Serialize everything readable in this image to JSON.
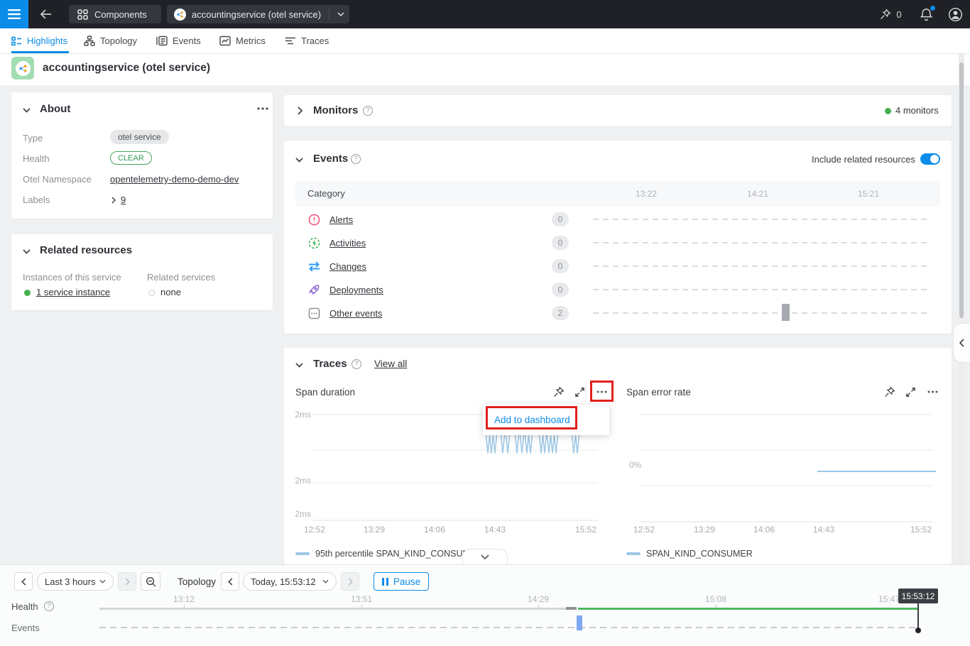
{
  "topbar": {
    "components_label": "Components",
    "service_label": "accountingservice (otel service)",
    "pin_count": "0"
  },
  "nav": {
    "tabs": [
      "Highlights",
      "Topology",
      "Events",
      "Metrics",
      "Traces"
    ]
  },
  "page": {
    "title": "accountingservice (otel service)"
  },
  "about": {
    "title": "About",
    "type_label": "Type",
    "type_value": "otel service",
    "health_label": "Health",
    "health_value": "CLEAR",
    "ns_label": "Otel Namespace",
    "ns_value": "opentelemetry-demo-demo-dev",
    "labels_label": "Labels",
    "labels_value": "9"
  },
  "related": {
    "title": "Related resources",
    "instances_label": "Instances of this service",
    "instances_value": "1 service instance",
    "services_label": "Related services",
    "services_value": "none"
  },
  "monitors": {
    "title": "Monitors",
    "count": "4 monitors"
  },
  "events": {
    "title": "Events",
    "include_label": "Include related resources",
    "category_header": "Category",
    "times": [
      "13:22",
      "14:21",
      "15:21"
    ],
    "rows": [
      {
        "label": "Alerts",
        "count": "0"
      },
      {
        "label": "Activities",
        "count": "0"
      },
      {
        "label": "Changes",
        "count": "0"
      },
      {
        "label": "Deployments",
        "count": "0"
      },
      {
        "label": "Other events",
        "count": "2"
      }
    ]
  },
  "traces": {
    "title": "Traces",
    "view_all": "View all",
    "menu_item": "Add to dashboard",
    "span_duration": {
      "title": "Span duration",
      "y_labels": [
        "2ms",
        "2ms",
        "2ms"
      ],
      "x_labels": [
        "12:52",
        "13:29",
        "14:06",
        "14:43",
        "15:52"
      ],
      "legend": "95th percentile SPAN_KIND_CONSUMER"
    },
    "span_error": {
      "title": "Span error rate",
      "y_label": "0%",
      "x_labels": [
        "12:52",
        "13:29",
        "14:06",
        "14:43",
        "15:52"
      ],
      "legend": "SPAN_KIND_CONSUMER"
    }
  },
  "chart_data": [
    {
      "type": "line",
      "title": "Span duration",
      "x_ticks": [
        "12:52",
        "13:29",
        "14:06",
        "14:43",
        "15:52"
      ],
      "y_ticks": [
        "2ms",
        "2ms",
        "2ms"
      ],
      "legend": [
        "95th percentile SPAN_KIND_CONSUMER"
      ],
      "series": [
        {
          "name": "95th percentile SPAN_KIND_CONSUMER",
          "color": "#9cc7e5",
          "note": "data present only ~14:45-15:20; baseline ~2ms with repeated sharp downward spikes",
          "spike_x": [
            271,
            276,
            281,
            292,
            299,
            312,
            319,
            326,
            331,
            346,
            351,
            357,
            362,
            367,
            392,
            397
          ],
          "baseline_y": 38,
          "spike_y": 68
        }
      ]
    },
    {
      "type": "line",
      "title": "Span error rate",
      "x_ticks": [
        "12:52",
        "13:29",
        "14:06",
        "14:43",
        "15:52"
      ],
      "y_ticks": [
        "0%"
      ],
      "legend": [
        "SPAN_KIND_CONSUMER"
      ],
      "series": [
        {
          "name": "SPAN_KIND_CONSUMER",
          "color": "#9cc7e5",
          "value_percent": 0,
          "note": "flat 0% line from ~14:40 to 15:52",
          "segment_x": [
            269,
            436
          ],
          "y": 94
        }
      ]
    }
  ],
  "timeline": {
    "range_label": "Last 3 hours",
    "topology_label": "Topology",
    "time_label": "Today, 15:53:12",
    "pause_label": "Pause",
    "health_label": "Health",
    "events_label": "Events",
    "ticks": [
      "13:12",
      "13:51",
      "14:29",
      "15:08",
      "15:47"
    ],
    "cursor_tooltip": "15:53:12"
  }
}
